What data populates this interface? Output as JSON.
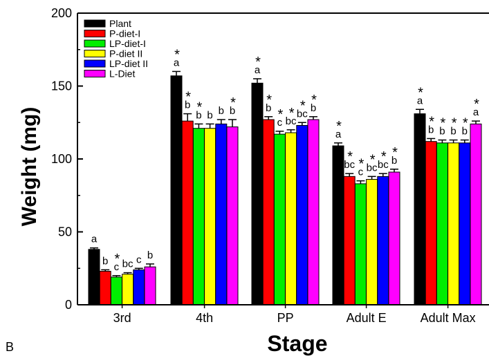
{
  "panel_label": "B",
  "chart_data": {
    "type": "bar",
    "title": "",
    "xlabel": "Stage",
    "ylabel": "Weight (mg)",
    "ylim": [
      0,
      200
    ],
    "yticks": [
      0,
      50,
      100,
      150,
      200
    ],
    "grid": false,
    "legend_position": "top-left",
    "categories": [
      "3rd",
      "4th",
      "PP",
      "Adult E",
      "Adult Max"
    ],
    "series": [
      {
        "name": "Plant",
        "color": "#000000",
        "values": [
          38,
          157,
          152,
          109,
          131
        ],
        "errors": [
          1,
          3,
          3,
          2,
          3
        ],
        "letters": [
          "a",
          "a",
          "a",
          "a",
          "a"
        ],
        "stars": [
          false,
          true,
          true,
          true,
          true
        ]
      },
      {
        "name": "P-diet-I",
        "color": "#ff0000",
        "values": [
          23,
          126,
          127,
          88,
          112
        ],
        "errors": [
          1,
          5,
          2,
          2,
          2
        ],
        "letters": [
          "b",
          "b",
          "b",
          "bc",
          "b"
        ],
        "stars": [
          false,
          true,
          true,
          true,
          true
        ]
      },
      {
        "name": "LP-diet-I",
        "color": "#00ee00",
        "values": [
          19,
          121,
          117,
          83,
          111
        ],
        "errors": [
          1,
          3,
          2,
          2,
          2
        ],
        "letters": [
          "c",
          "b",
          "c",
          "c",
          "b"
        ],
        "stars": [
          true,
          true,
          true,
          true,
          true
        ]
      },
      {
        "name": "P-diet II",
        "color": "#ffff00",
        "values": [
          21,
          121,
          118,
          86,
          111
        ],
        "errors": [
          1,
          3,
          2,
          2,
          2
        ],
        "letters": [
          "bc",
          "b",
          "bc",
          "bc",
          "b"
        ],
        "stars": [
          false,
          false,
          true,
          true,
          true
        ]
      },
      {
        "name": "LP-diet II",
        "color": "#0000ff",
        "values": [
          24,
          124,
          123,
          88,
          111
        ],
        "errors": [
          1,
          3,
          2,
          2,
          2
        ],
        "letters": [
          "c",
          "b",
          "bc",
          "bc",
          "b"
        ],
        "stars": [
          false,
          false,
          true,
          true,
          true
        ]
      },
      {
        "name": "L-Diet",
        "color": "#ff00ff",
        "values": [
          26,
          122,
          127,
          91,
          124
        ],
        "errors": [
          2,
          5,
          2,
          2,
          2
        ],
        "letters": [
          "b",
          "b",
          "b",
          "b",
          "a"
        ],
        "stars": [
          false,
          true,
          true,
          true,
          true
        ]
      }
    ]
  }
}
